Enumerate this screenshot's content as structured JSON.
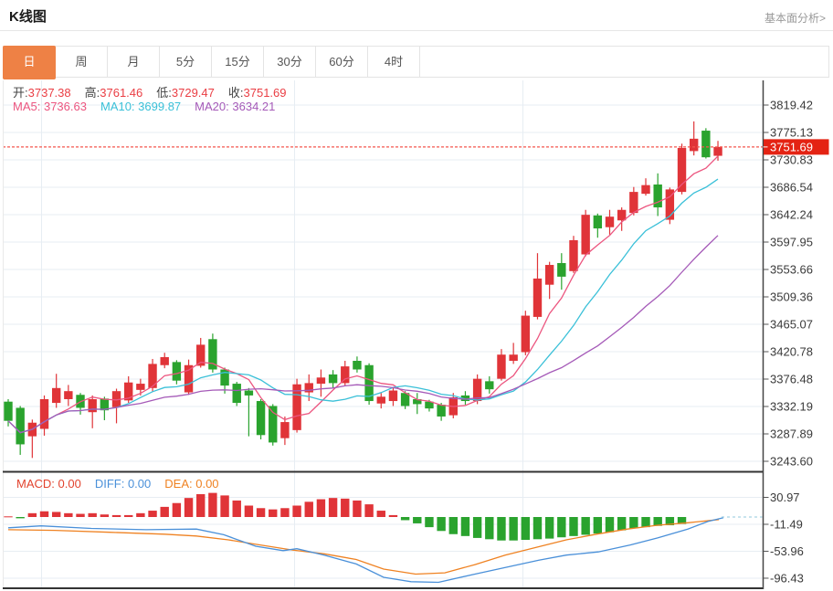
{
  "header": {
    "title": "K线图",
    "link": "基本面分析>"
  },
  "tabs": {
    "items": [
      "日",
      "周",
      "月",
      "5分",
      "15分",
      "30分",
      "60分",
      "4时"
    ],
    "active_index": 0
  },
  "info_bar": {
    "open_label": "开:",
    "open": "3737.38",
    "high_label": "高:",
    "high": "3761.46",
    "low_label": "低:",
    "low": "3729.47",
    "close_label": "收:",
    "close": "3751.69"
  },
  "ma_bar": {
    "ma5_label": "MA5:",
    "ma5": "3736.63",
    "ma10_label": "MA10:",
    "ma10": "3699.87",
    "ma20_label": "MA20:",
    "ma20": "3634.21"
  },
  "macd_bar": {
    "macd_label": "MACD:",
    "macd": "0.00",
    "diff_label": "DIFF:",
    "diff": "0.00",
    "dea_label": "DEA:",
    "dea": "0.00"
  },
  "colors": {
    "accent_orange": "#ee8145",
    "up_red": "#e03438",
    "down_green": "#2aa32e",
    "value_red": "#ea3e44",
    "ma5_pink": "#ec557f",
    "ma10_cyan": "#3ac0d8",
    "ma20_purple": "#a55ab8",
    "diff_blue": "#4a90d9",
    "dea_orange": "#ef8222",
    "macd_label_red": "#e2432e",
    "badge_red": "#e42313",
    "dotted_line_red": "#f4574e",
    "axis_text": "#3a3a3a",
    "grid": "#e7edf3",
    "frame_dark": "#333333",
    "frame_light": "#e9e9e9"
  },
  "chart_data": {
    "type": "candlestick+macd",
    "main": {
      "y_axis_labels": [
        "3819.42",
        "3775.13",
        "3730.83",
        "3686.54",
        "3642.24",
        "3597.95",
        "3553.66",
        "3509.36",
        "3465.07",
        "3420.78",
        "3376.48",
        "3332.19",
        "3287.89",
        "3243.60"
      ],
      "y_max": 3819.42,
      "y_min": 3243.6,
      "last_price": 3751.69,
      "last_price_label": "3751.69",
      "ma_periods": [
        5,
        10,
        20
      ],
      "candles_ohlc": [
        [
          3340,
          3344,
          3300,
          3309
        ],
        [
          3330,
          3333,
          3254,
          3271
        ],
        [
          3284,
          3311,
          3249,
          3306
        ],
        [
          3296,
          3350,
          3285,
          3344
        ],
        [
          3338,
          3385,
          3330,
          3362
        ],
        [
          3344,
          3367,
          3333,
          3357
        ],
        [
          3351,
          3354,
          3319,
          3330
        ],
        [
          3323,
          3350,
          3297,
          3344
        ],
        [
          3345,
          3348,
          3310,
          3326
        ],
        [
          3331,
          3361,
          3305,
          3357
        ],
        [
          3342,
          3381,
          3338,
          3371
        ],
        [
          3359,
          3377,
          3350,
          3369
        ],
        [
          3362,
          3409,
          3356,
          3401
        ],
        [
          3399,
          3419,
          3394,
          3412
        ],
        [
          3404,
          3407,
          3368,
          3374
        ],
        [
          3355,
          3408,
          3351,
          3399
        ],
        [
          3398,
          3443,
          3395,
          3432
        ],
        [
          3441,
          3450,
          3387,
          3392
        ],
        [
          3392,
          3395,
          3353,
          3366
        ],
        [
          3369,
          3372,
          3333,
          3338
        ],
        [
          3358,
          3362,
          3284,
          3350
        ],
        [
          3341,
          3344,
          3279,
          3286
        ],
        [
          3333,
          3336,
          3269,
          3274
        ],
        [
          3281,
          3316,
          3270,
          3307
        ],
        [
          3294,
          3377,
          3290,
          3368
        ],
        [
          3355,
          3384,
          3341,
          3370
        ],
        [
          3369,
          3392,
          3348,
          3379
        ],
        [
          3384,
          3391,
          3362,
          3370
        ],
        [
          3370,
          3406,
          3366,
          3397
        ],
        [
          3406,
          3413,
          3387,
          3392
        ],
        [
          3399,
          3402,
          3335,
          3341
        ],
        [
          3337,
          3354,
          3329,
          3348
        ],
        [
          3341,
          3363,
          3333,
          3358
        ],
        [
          3354,
          3357,
          3328,
          3333
        ],
        [
          3344,
          3354,
          3320,
          3336
        ],
        [
          3340,
          3343,
          3324,
          3329
        ],
        [
          3335,
          3338,
          3309,
          3316
        ],
        [
          3318,
          3354,
          3313,
          3347
        ],
        [
          3350,
          3357,
          3335,
          3341
        ],
        [
          3341,
          3384,
          3336,
          3377
        ],
        [
          3373,
          3381,
          3353,
          3360
        ],
        [
          3377,
          3425,
          3374,
          3416
        ],
        [
          3406,
          3435,
          3401,
          3416
        ],
        [
          3420,
          3487,
          3415,
          3479
        ],
        [
          3477,
          3580,
          3473,
          3539
        ],
        [
          3529,
          3566,
          3506,
          3561
        ],
        [
          3564,
          3580,
          3521,
          3542
        ],
        [
          3551,
          3608,
          3548,
          3601
        ],
        [
          3578,
          3650,
          3575,
          3642
        ],
        [
          3641,
          3644,
          3605,
          3620
        ],
        [
          3622,
          3650,
          3610,
          3639
        ],
        [
          3633,
          3654,
          3616,
          3650
        ],
        [
          3645,
          3687,
          3641,
          3679
        ],
        [
          3676,
          3701,
          3673,
          3690
        ],
        [
          3691,
          3709,
          3640,
          3654
        ],
        [
          3634,
          3686,
          3627,
          3683
        ],
        [
          3679,
          3757,
          3675,
          3750
        ],
        [
          3745,
          3793,
          3738,
          3765
        ],
        [
          3778,
          3782,
          3733,
          3735
        ],
        [
          3737.38,
          3761.46,
          3729.47,
          3751.69
        ]
      ]
    },
    "macd": {
      "y_axis_labels": [
        "30.97",
        "-11.49",
        "-53.96",
        "-96.43"
      ],
      "y_axis_values": [
        30.97,
        -11.49,
        -53.96,
        -96.43
      ],
      "histogram": [
        1,
        -2,
        6,
        9,
        8,
        6,
        5,
        6,
        4,
        3,
        3,
        6,
        10,
        16,
        22,
        30,
        36,
        38,
        34,
        26,
        18,
        14,
        12,
        14,
        18,
        24,
        28,
        30,
        29,
        26,
        20,
        10,
        3,
        -5,
        -10,
        -16,
        -22,
        -27,
        -30,
        -33,
        -35,
        -37,
        -37,
        -36,
        -35,
        -34,
        -32,
        -30,
        -28,
        -26,
        -24,
        -21,
        -18,
        -16,
        -14,
        -13,
        -11,
        0,
        0,
        0
      ],
      "diff_points": [
        [
          9,
          -17
        ],
        [
          45,
          -14
        ],
        [
          100,
          -18
        ],
        [
          160,
          -20
        ],
        [
          215,
          -19
        ],
        [
          245,
          -28
        ],
        [
          280,
          -46
        ],
        [
          310,
          -53
        ],
        [
          325,
          -50
        ],
        [
          355,
          -60
        ],
        [
          390,
          -74
        ],
        [
          420,
          -95
        ],
        [
          450,
          -102
        ],
        [
          480,
          -103
        ],
        [
          520,
          -90
        ],
        [
          555,
          -79
        ],
        [
          590,
          -68
        ],
        [
          620,
          -60
        ],
        [
          655,
          -55
        ],
        [
          690,
          -44
        ],
        [
          720,
          -33
        ],
        [
          753,
          -19
        ],
        [
          775,
          -7
        ],
        [
          792,
          -1
        ]
      ],
      "dea_points": [
        [
          9,
          -20
        ],
        [
          60,
          -21
        ],
        [
          120,
          -24
        ],
        [
          180,
          -27
        ],
        [
          215,
          -30
        ],
        [
          250,
          -36
        ],
        [
          285,
          -44
        ],
        [
          320,
          -52
        ],
        [
          355,
          -58
        ],
        [
          390,
          -67
        ],
        [
          420,
          -82
        ],
        [
          455,
          -90
        ],
        [
          487,
          -88
        ],
        [
          520,
          -75
        ],
        [
          553,
          -60
        ],
        [
          587,
          -48
        ],
        [
          620,
          -36
        ],
        [
          653,
          -27
        ],
        [
          687,
          -19
        ],
        [
          720,
          -13
        ],
        [
          753,
          -9
        ],
        [
          787,
          -4
        ]
      ]
    }
  }
}
